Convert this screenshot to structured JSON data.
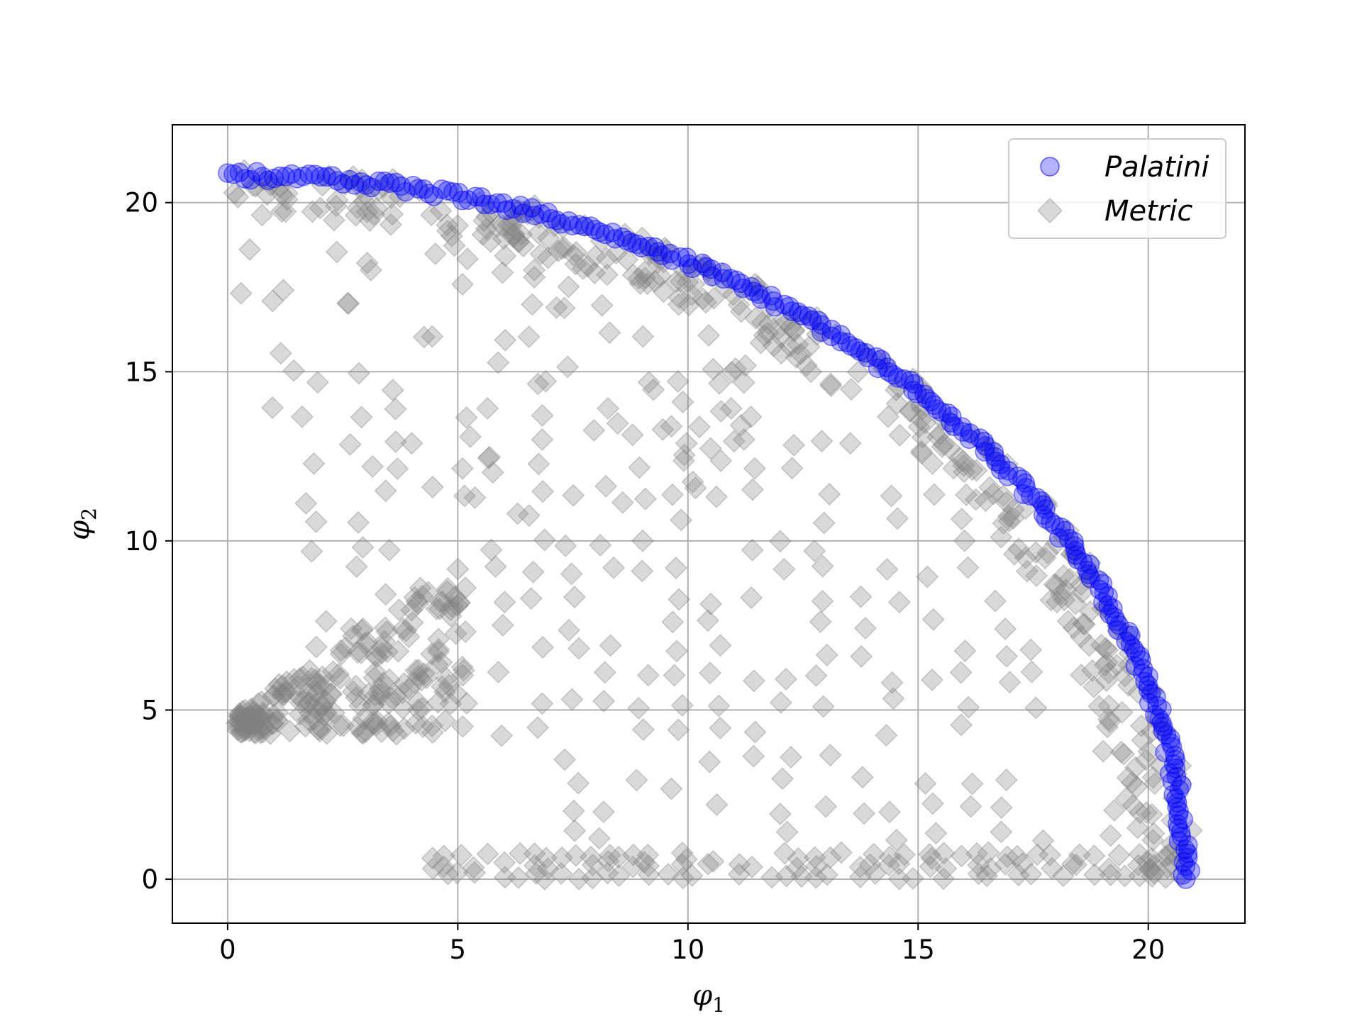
{
  "chart_data": {
    "type": "scatter",
    "title": "",
    "xlabel": {
      "base": "φ",
      "sub": "1"
    },
    "ylabel": {
      "base": "φ",
      "sub": "2"
    },
    "xlim": [
      -1.2,
      22.1
    ],
    "ylim": [
      -1.3,
      22.3
    ],
    "xticks": [
      0,
      5,
      10,
      15,
      20
    ],
    "yticks": [
      0,
      5,
      10,
      15,
      20
    ],
    "xtick_labels": [
      "0",
      "5",
      "10",
      "15",
      "20"
    ],
    "ytick_labels": [
      "0",
      "5",
      "10",
      "15",
      "20"
    ],
    "grid": true,
    "legend": "top-right",
    "radius": 20.8,
    "series": [
      {
        "name": "Palatini",
        "marker": "circle",
        "color": "#0000ff",
        "alpha": 0.3,
        "description_hint": "points along quarter circle of radius ~20.8",
        "angle_range_deg": [
          0,
          90
        ],
        "count": 260
      },
      {
        "name": "Metric",
        "marker": "diamond",
        "color": "#808080",
        "alpha": 0.3,
        "clusters": {
          "arc_band": {
            "r_min": 19.6,
            "r_max": 21.0,
            "count": 320
          },
          "bottom_rows": {
            "x_min": 4.4,
            "x_max": 21.0,
            "y_values": [
              0.0,
              0.3,
              0.6
            ]
          },
          "left_fan": {
            "x_min": 0.2,
            "x_max": 5.2,
            "y_min": 4.3,
            "y_max": 9.8
          },
          "interior_grid": {
            "x_min": 2.0,
            "x_max": 20.0,
            "y_min": 0.5,
            "y_max": 19.5
          }
        }
      }
    ]
  }
}
